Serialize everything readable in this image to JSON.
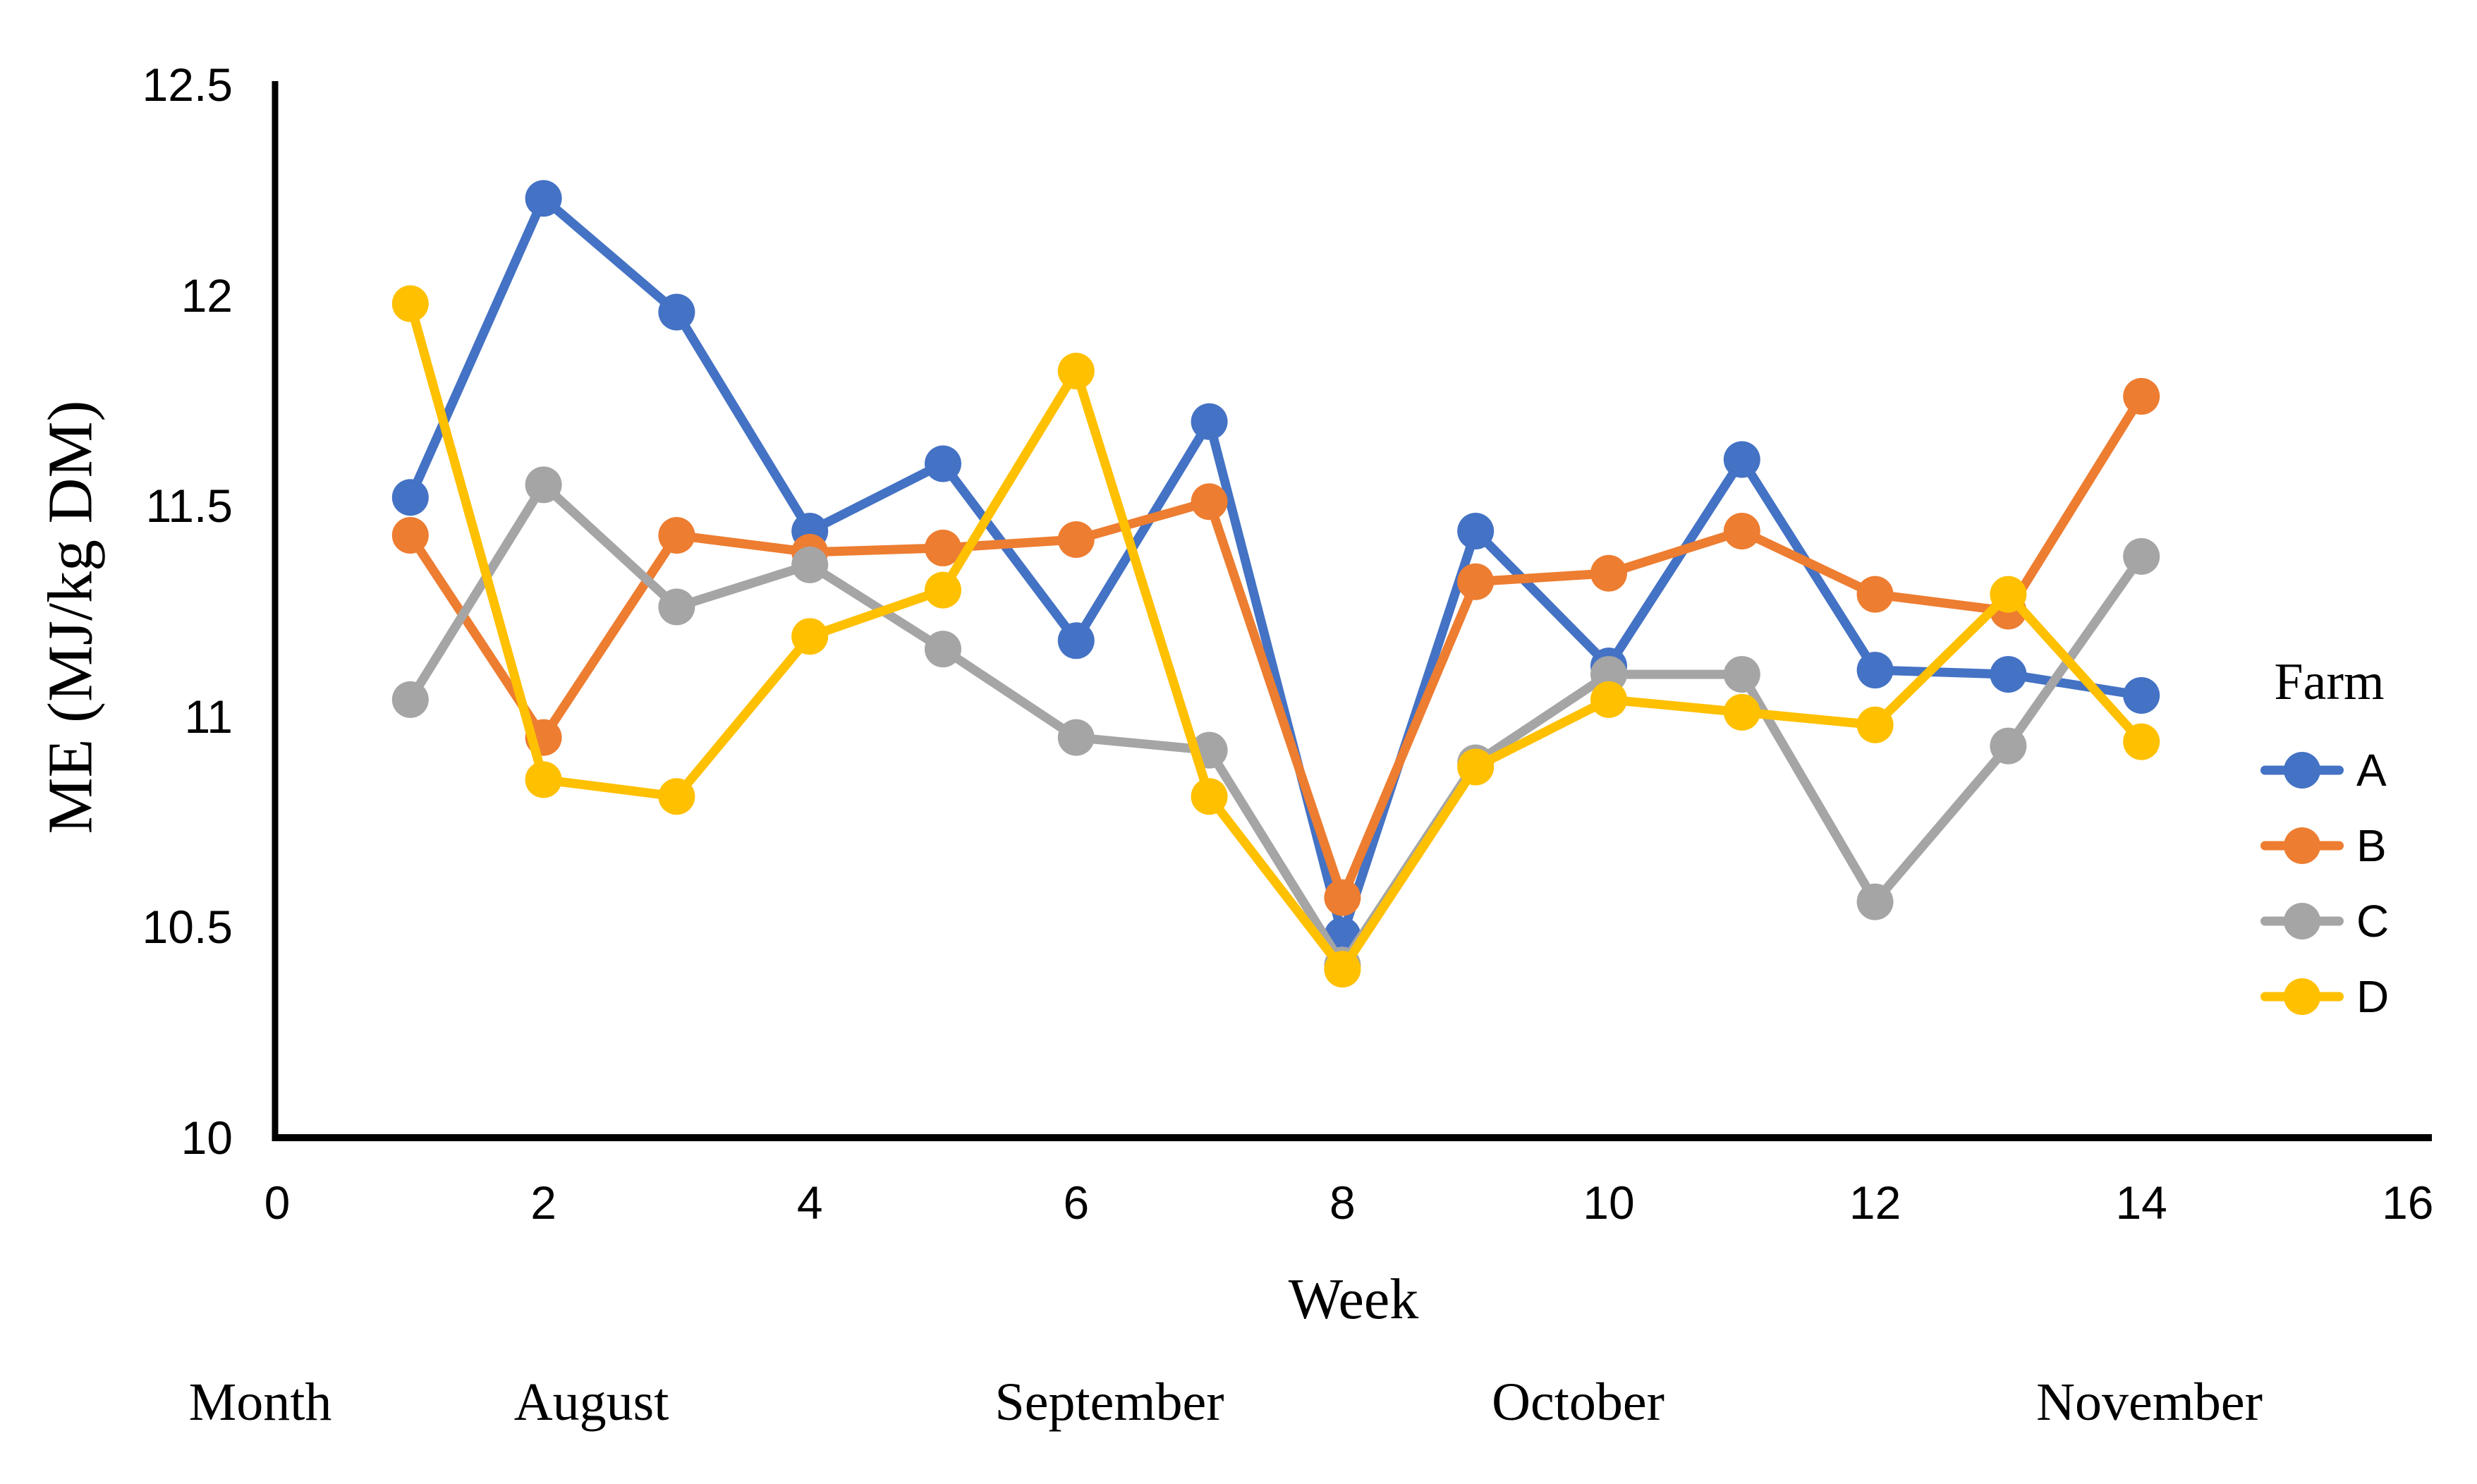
{
  "chart_data": {
    "type": "line",
    "title": "",
    "x_axis": {
      "label": "Week",
      "min": 0,
      "max": 16,
      "tick_interval": 2,
      "ticks": [
        0,
        2,
        4,
        6,
        8,
        10,
        12,
        14,
        16
      ]
    },
    "y_axis": {
      "label": "ME (MJ/kg DM)",
      "min": 10,
      "max": 12.5,
      "tick_interval": 0.5,
      "ticks": [
        12.5,
        12,
        11.5,
        11,
        10.5,
        10
      ]
    },
    "x": [
      1,
      2,
      3,
      4,
      5,
      6,
      7,
      8,
      9,
      10,
      11,
      12,
      13,
      14
    ],
    "series": [
      {
        "name": "A",
        "color": "#4472C4",
        "values": [
          11.52,
          12.23,
          11.96,
          11.44,
          11.6,
          11.18,
          11.7,
          10.48,
          11.44,
          11.12,
          11.61,
          11.11,
          11.1,
          11.05
        ]
      },
      {
        "name": "B",
        "color": "#ED7D31",
        "values": [
          11.43,
          10.95,
          11.43,
          11.39,
          11.4,
          11.42,
          11.51,
          10.57,
          11.32,
          11.34,
          11.44,
          11.29,
          11.25,
          11.76
        ]
      },
      {
        "name": "C",
        "color": "#A5A5A5",
        "values": [
          11.04,
          11.55,
          11.26,
          11.36,
          11.16,
          10.95,
          10.92,
          10.41,
          10.89,
          11.1,
          11.1,
          10.56,
          10.93,
          11.38
        ]
      },
      {
        "name": "D",
        "color": "#FFC000",
        "values": [
          11.98,
          10.85,
          10.81,
          11.19,
          11.3,
          11.82,
          10.81,
          10.4,
          10.88,
          11.04,
          11.01,
          10.98,
          11.29,
          10.94
        ]
      }
    ],
    "legend": {
      "title": "Farm",
      "position": "right",
      "items": [
        "A",
        "B",
        "C",
        "D"
      ]
    },
    "month_row": {
      "label": "Month",
      "months": [
        {
          "name": "August",
          "center_week": 2.36
        },
        {
          "name": "September",
          "center_week": 6.25
        },
        {
          "name": "October",
          "center_week": 9.77
        },
        {
          "name": "November",
          "center_week": 14.06
        }
      ]
    },
    "axis_color": "#000000",
    "grid": false,
    "legend_position": "right"
  }
}
